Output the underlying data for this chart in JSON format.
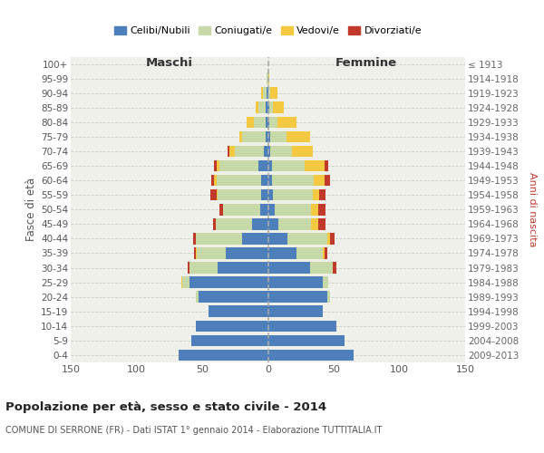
{
  "age_groups": [
    "0-4",
    "5-9",
    "10-14",
    "15-19",
    "20-24",
    "25-29",
    "30-34",
    "35-39",
    "40-44",
    "45-49",
    "50-54",
    "55-59",
    "60-64",
    "65-69",
    "70-74",
    "75-79",
    "80-84",
    "85-89",
    "90-94",
    "95-99",
    "100+"
  ],
  "birth_years": [
    "2009-2013",
    "2004-2008",
    "1999-2003",
    "1994-1998",
    "1989-1993",
    "1984-1988",
    "1979-1983",
    "1974-1978",
    "1969-1973",
    "1964-1968",
    "1959-1963",
    "1954-1958",
    "1949-1953",
    "1944-1948",
    "1939-1943",
    "1934-1938",
    "1929-1933",
    "1924-1928",
    "1919-1923",
    "1914-1918",
    "≤ 1913"
  ],
  "maschi": {
    "celibi": [
      68,
      58,
      55,
      45,
      53,
      60,
      38,
      32,
      20,
      12,
      6,
      5,
      5,
      7,
      3,
      2,
      2,
      2,
      1,
      0,
      0
    ],
    "coniugati": [
      0,
      0,
      0,
      0,
      2,
      5,
      22,
      22,
      35,
      28,
      28,
      33,
      34,
      30,
      22,
      18,
      9,
      5,
      3,
      1,
      0
    ],
    "vedovi": [
      0,
      0,
      0,
      0,
      0,
      1,
      0,
      1,
      0,
      0,
      0,
      1,
      2,
      2,
      4,
      2,
      5,
      2,
      1,
      0,
      0
    ],
    "divorziati": [
      0,
      0,
      0,
      0,
      0,
      0,
      1,
      1,
      2,
      2,
      3,
      5,
      2,
      2,
      2,
      0,
      0,
      0,
      0,
      0,
      0
    ]
  },
  "femmine": {
    "nubili": [
      65,
      58,
      52,
      42,
      45,
      42,
      32,
      22,
      15,
      8,
      5,
      4,
      3,
      3,
      2,
      2,
      1,
      1,
      0,
      0,
      0
    ],
    "coniugate": [
      0,
      0,
      0,
      0,
      2,
      4,
      17,
      20,
      30,
      25,
      28,
      30,
      32,
      25,
      16,
      12,
      6,
      3,
      2,
      0,
      0
    ],
    "vedove": [
      0,
      0,
      0,
      0,
      0,
      0,
      0,
      1,
      2,
      5,
      5,
      5,
      8,
      15,
      16,
      18,
      15,
      8,
      5,
      1,
      0
    ],
    "divorziate": [
      0,
      0,
      0,
      0,
      0,
      0,
      3,
      2,
      4,
      6,
      6,
      5,
      4,
      3,
      0,
      0,
      0,
      0,
      0,
      0,
      0
    ]
  },
  "colors": {
    "celibi_nubili": "#4d7fba",
    "coniugati_e": "#c8d9a8",
    "vedovi_e": "#f5c842",
    "divorziati_e": "#c0392b"
  },
  "xlim": 150,
  "title": "Popolazione per età, sesso e stato civile - 2014",
  "subtitle": "COMUNE DI SERRONE (FR) - Dati ISTAT 1° gennaio 2014 - Elaborazione TUTTITALIA.IT",
  "ylabel_left": "Fasce di età",
  "ylabel_right": "Anni di nascita",
  "xlabel_maschi": "Maschi",
  "xlabel_femmine": "Femmine",
  "bg_color": "#f0f0eb",
  "legend_labels": [
    "Celibi/Nubili",
    "Coniugati/e",
    "Vedovi/e",
    "Divorziati/e"
  ]
}
